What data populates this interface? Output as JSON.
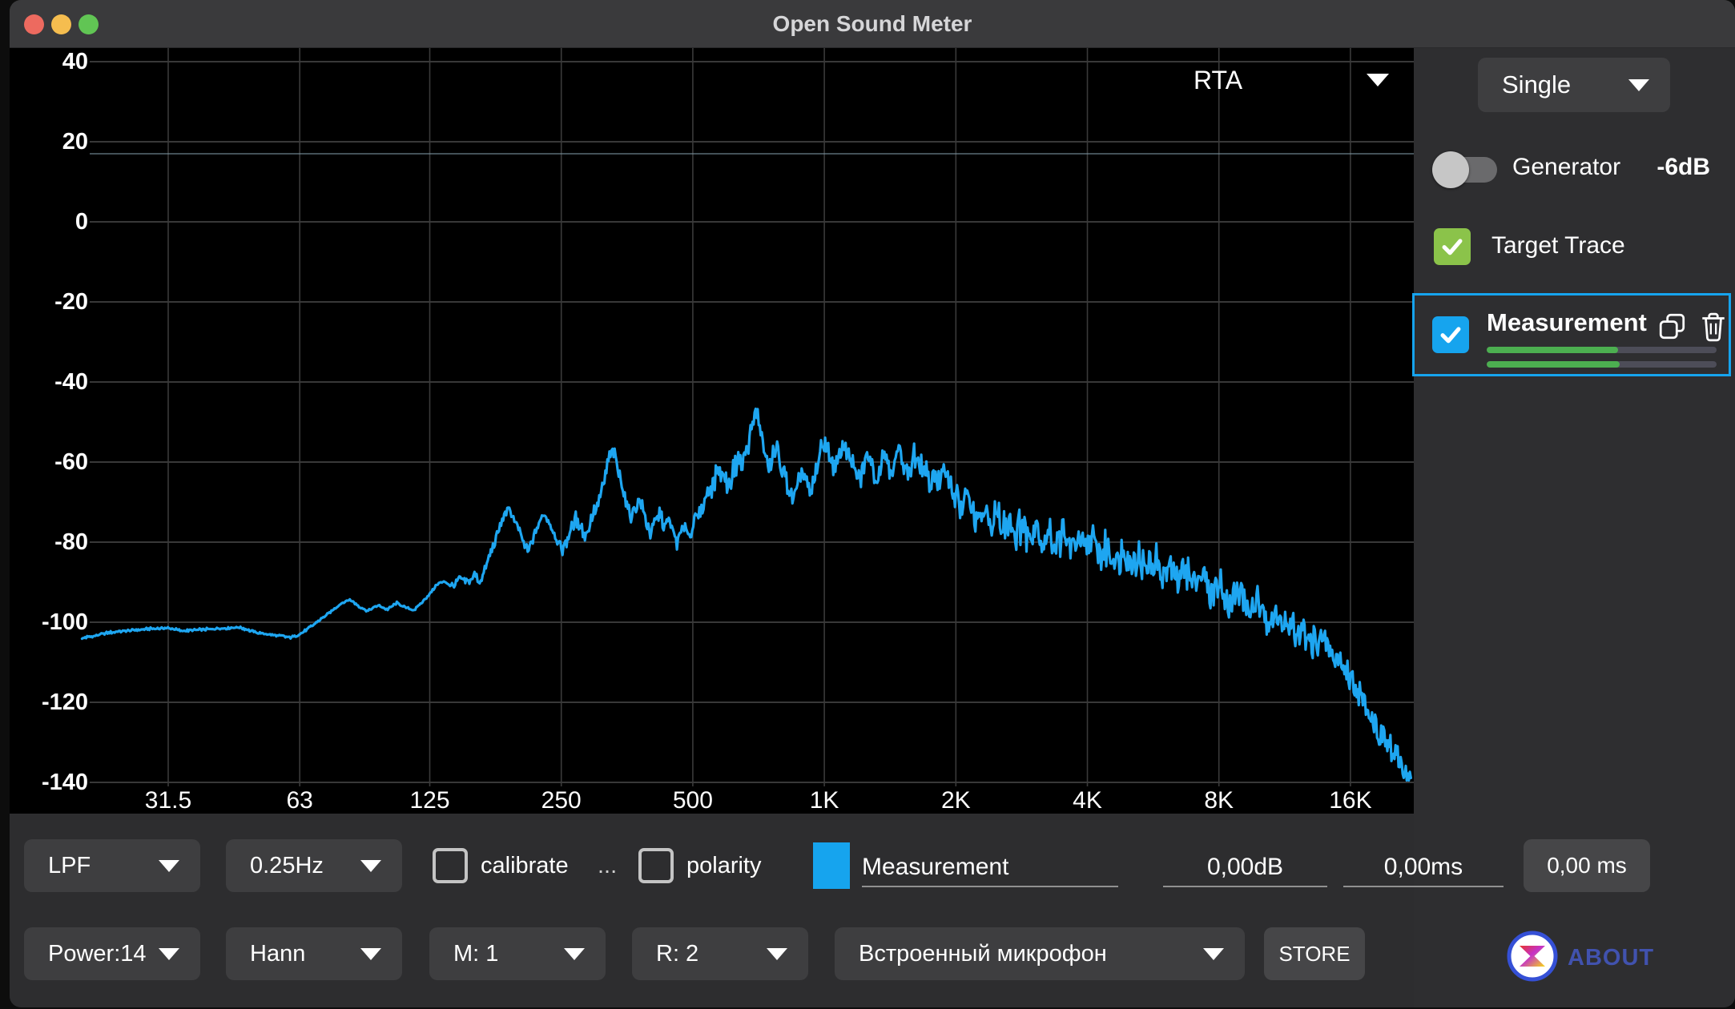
{
  "window": {
    "title": "Open Sound Meter"
  },
  "chart": {
    "selector_label": "RTA"
  },
  "chart_data": {
    "type": "line",
    "title": "RTA spectrum",
    "x_scale": "log",
    "xlim": [
      20,
      22000
    ],
    "ylim": [
      -148,
      44
    ],
    "grid": true,
    "x_ticks": [
      {
        "f": 31.5,
        "label": "31.5"
      },
      {
        "f": 63,
        "label": "63"
      },
      {
        "f": 125,
        "label": "125"
      },
      {
        "f": 250,
        "label": "250"
      },
      {
        "f": 500,
        "label": "500"
      },
      {
        "f": 1000,
        "label": "1K"
      },
      {
        "f": 2000,
        "label": "2K"
      },
      {
        "f": 4000,
        "label": "4K"
      },
      {
        "f": 8000,
        "label": "8K"
      },
      {
        "f": 16000,
        "label": "16K"
      }
    ],
    "y_ticks": [
      40,
      20,
      0,
      -20,
      -40,
      -60,
      -80,
      -100,
      -120,
      -140
    ],
    "target_trace_level_db": 17,
    "series": [
      {
        "name": "Measurement",
        "color": "#1ea6f1",
        "points_f_db": [
          [
            20,
            -104
          ],
          [
            23,
            -102.6
          ],
          [
            26,
            -102
          ],
          [
            29,
            -101.6
          ],
          [
            31.5,
            -101.4
          ],
          [
            34,
            -102.2
          ],
          [
            38,
            -101.8
          ],
          [
            42,
            -101.5
          ],
          [
            46,
            -101.3
          ],
          [
            50,
            -102.6
          ],
          [
            55,
            -103.2
          ],
          [
            60,
            -103.8
          ],
          [
            63,
            -103
          ],
          [
            68,
            -100.5
          ],
          [
            73,
            -98
          ],
          [
            78,
            -95.5
          ],
          [
            82,
            -94.3
          ],
          [
            86,
            -96
          ],
          [
            90,
            -97.2
          ],
          [
            95,
            -95.8
          ],
          [
            100,
            -96.8
          ],
          [
            105,
            -95.2
          ],
          [
            110,
            -96.4
          ],
          [
            115,
            -97
          ],
          [
            120,
            -95
          ],
          [
            125,
            -93
          ],
          [
            130,
            -90.5
          ],
          [
            135,
            -89.8
          ],
          [
            140,
            -91
          ],
          [
            147,
            -89
          ],
          [
            153,
            -90.2
          ],
          [
            158,
            -88
          ],
          [
            163,
            -90
          ],
          [
            168,
            -86
          ],
          [
            172,
            -83
          ],
          [
            176,
            -80
          ],
          [
            181,
            -76
          ],
          [
            186,
            -72.5
          ],
          [
            190,
            -71.8
          ],
          [
            195,
            -74
          ],
          [
            200,
            -77
          ],
          [
            205,
            -80.5
          ],
          [
            210,
            -82.6
          ],
          [
            216,
            -79
          ],
          [
            222,
            -75.5
          ],
          [
            228,
            -73
          ],
          [
            233,
            -74.3
          ],
          [
            239,
            -77
          ],
          [
            245,
            -80
          ],
          [
            252,
            -82
          ],
          [
            258,
            -79
          ],
          [
            264,
            -76
          ],
          [
            270,
            -74
          ],
          [
            277,
            -76
          ],
          [
            284,
            -78.5
          ],
          [
            291,
            -75
          ],
          [
            298,
            -72
          ],
          [
            305,
            -70
          ],
          [
            312,
            -66
          ],
          [
            318,
            -61
          ],
          [
            323,
            -58.2
          ],
          [
            328,
            -57.5
          ],
          [
            334,
            -60
          ],
          [
            340,
            -63.5
          ],
          [
            347,
            -67
          ],
          [
            354,
            -71
          ],
          [
            360,
            -74
          ],
          [
            368,
            -72
          ],
          [
            376,
            -69
          ],
          [
            384,
            -72
          ],
          [
            392,
            -75.5
          ],
          [
            400,
            -78
          ],
          [
            410,
            -75
          ],
          [
            420,
            -73
          ],
          [
            430,
            -76
          ],
          [
            440,
            -74
          ],
          [
            450,
            -77
          ],
          [
            460,
            -80
          ],
          [
            470,
            -77.5
          ],
          [
            480,
            -75
          ],
          [
            490,
            -78
          ],
          [
            500,
            -76
          ],
          [
            515,
            -73
          ],
          [
            530,
            -70
          ],
          [
            545,
            -67
          ],
          [
            560,
            -64
          ],
          [
            575,
            -62
          ],
          [
            590,
            -63.5
          ],
          [
            605,
            -66
          ],
          [
            620,
            -62
          ],
          [
            635,
            -59
          ],
          [
            650,
            -61
          ],
          [
            665,
            -57
          ],
          [
            680,
            -52
          ],
          [
            700,
            -46.8
          ],
          [
            715,
            -52
          ],
          [
            730,
            -58
          ],
          [
            745,
            -62
          ],
          [
            760,
            -59
          ],
          [
            775,
            -56
          ],
          [
            790,
            -59
          ],
          [
            810,
            -63
          ],
          [
            830,
            -66
          ],
          [
            850,
            -69
          ],
          [
            870,
            -66
          ],
          [
            890,
            -62
          ],
          [
            910,
            -65
          ],
          [
            930,
            -68
          ],
          [
            950,
            -64
          ],
          [
            970,
            -60
          ],
          [
            990,
            -57
          ],
          [
            1010,
            -56
          ],
          [
            1035,
            -59
          ],
          [
            1060,
            -62
          ],
          [
            1085,
            -58
          ],
          [
            1110,
            -55
          ],
          [
            1140,
            -58
          ],
          [
            1170,
            -62
          ],
          [
            1200,
            -65
          ],
          [
            1230,
            -61
          ],
          [
            1260,
            -58
          ],
          [
            1290,
            -61
          ],
          [
            1320,
            -64
          ],
          [
            1360,
            -57
          ],
          [
            1400,
            -60
          ],
          [
            1440,
            -63
          ],
          [
            1480,
            -56
          ],
          [
            1520,
            -60
          ],
          [
            1560,
            -64
          ],
          [
            1600,
            -58
          ],
          [
            1650,
            -61
          ],
          [
            1700,
            -63
          ],
          [
            1750,
            -66
          ],
          [
            1800,
            -62
          ],
          [
            1850,
            -66
          ],
          [
            1900,
            -61
          ],
          [
            1950,
            -65
          ],
          [
            2000,
            -69
          ],
          [
            2060,
            -72
          ],
          [
            2120,
            -68
          ],
          [
            2180,
            -72
          ],
          [
            2250,
            -75
          ],
          [
            2320,
            -72
          ],
          [
            2400,
            -76
          ],
          [
            2480,
            -73
          ],
          [
            2560,
            -77
          ],
          [
            2650,
            -74
          ],
          [
            2740,
            -78
          ],
          [
            2840,
            -75
          ],
          [
            2940,
            -79
          ],
          [
            3050,
            -76
          ],
          [
            3160,
            -80
          ],
          [
            3280,
            -77
          ],
          [
            3400,
            -81
          ],
          [
            3530,
            -78
          ],
          [
            3670,
            -82
          ],
          [
            3810,
            -79
          ],
          [
            3960,
            -82
          ],
          [
            4120,
            -80
          ],
          [
            4290,
            -84
          ],
          [
            4470,
            -81
          ],
          [
            4650,
            -85
          ],
          [
            4840,
            -82
          ],
          [
            5040,
            -86
          ],
          [
            5250,
            -83
          ],
          [
            5470,
            -87
          ],
          [
            5700,
            -84
          ],
          [
            5940,
            -88
          ],
          [
            6190,
            -86
          ],
          [
            6450,
            -89
          ],
          [
            6720,
            -87
          ],
          [
            7000,
            -90
          ],
          [
            7300,
            -88
          ],
          [
            7600,
            -92
          ],
          [
            7920,
            -90
          ],
          [
            8250,
            -93
          ],
          [
            8600,
            -95
          ],
          [
            8960,
            -93
          ],
          [
            9340,
            -97
          ],
          [
            9730,
            -95
          ],
          [
            10140,
            -99
          ],
          [
            10570,
            -97
          ],
          [
            11010,
            -101
          ],
          [
            11470,
            -100
          ],
          [
            11950,
            -103
          ],
          [
            12450,
            -102
          ],
          [
            12980,
            -106
          ],
          [
            13520,
            -104
          ],
          [
            14090,
            -106
          ],
          [
            14680,
            -108
          ],
          [
            15300,
            -110
          ],
          [
            15940,
            -113
          ],
          [
            16610,
            -117
          ],
          [
            17310,
            -121
          ],
          [
            18040,
            -125
          ],
          [
            18800,
            -128
          ],
          [
            19590,
            -131
          ],
          [
            20410,
            -134
          ],
          [
            21270,
            -137
          ],
          [
            22000,
            -139
          ]
        ]
      }
    ],
    "noise_texture": {
      "samples": 1300,
      "amp_by_freq": [
        [
          140,
          0.3
        ],
        [
          250,
          1.2
        ],
        [
          550,
          2.0
        ],
        [
          1500,
          3.0
        ],
        [
          2500,
          4.0
        ],
        [
          9000,
          4.5
        ],
        [
          16000,
          5.0
        ],
        [
          22000,
          3.5
        ]
      ]
    }
  },
  "sidebar": {
    "mode": "Single",
    "generator": {
      "label": "Generator",
      "level": "-6dB",
      "enabled": false
    },
    "target_trace": {
      "label": "Target Trace",
      "checked": true
    },
    "measurement": {
      "title": "Measurement",
      "checked": true,
      "selected": true,
      "levels_pct": [
        57,
        58
      ]
    }
  },
  "toolbar": {
    "row1": {
      "filter": "LPF",
      "resolution": "0.25Hz",
      "calibrate_label": "calibrate",
      "calibrate_more": "...",
      "polarity_label": "polarity",
      "name_value": "Measurement",
      "gain_value": "0,00dB",
      "delay_value": "0,00ms",
      "delay_button": "0,00 ms"
    },
    "row2": {
      "fft_power": "Power:14",
      "window_fn": "Hann",
      "average": "M: 1",
      "reference": "R: 2",
      "device": "Встроенный микрофон",
      "store": "STORE"
    }
  },
  "about": {
    "label": "ABOUT"
  },
  "colors": {
    "accent_blue": "#16a4ee",
    "trace_blue": "#1ea6f1",
    "check_green": "#8bc34a",
    "bar_green": "#4caf50",
    "grid_h": "#4a4a4a",
    "grid_v": "#3a3a3a",
    "target_line": "#7a93a0"
  }
}
